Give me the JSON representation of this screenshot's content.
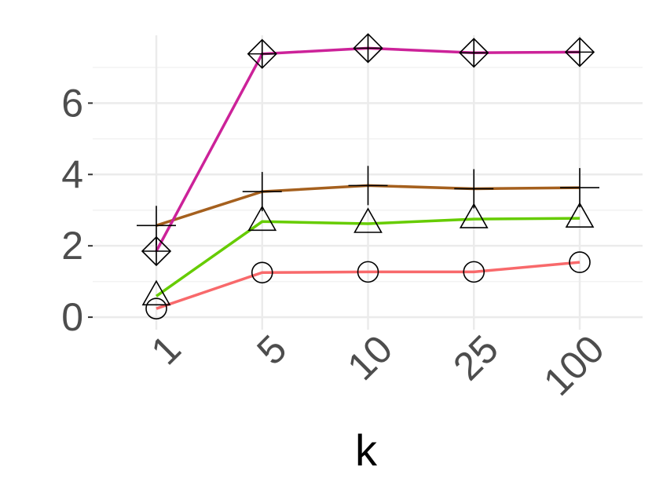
{
  "chart_data": {
    "type": "line",
    "x_label": "k",
    "categories": [
      "1",
      "5",
      "10",
      "25",
      "100"
    ],
    "ylim": [
      -0.35,
      7.9
    ],
    "yticks": [
      0,
      2,
      4,
      6
    ],
    "y_minor_grid": [
      1,
      3,
      5,
      7
    ],
    "grid": true,
    "series": [
      {
        "color": "#f8696b",
        "shape": "circle",
        "values": [
          0.24,
          1.25,
          1.27,
          1.27,
          1.54
        ]
      },
      {
        "color": "#66cc00",
        "shape": "triangle",
        "values": [
          0.59,
          2.68,
          2.62,
          2.75,
          2.77
        ]
      },
      {
        "color": "#a5601e",
        "shape": "plus",
        "values": [
          2.57,
          3.52,
          3.69,
          3.6,
          3.63
        ]
      },
      {
        "color": "#cc2299",
        "shape": "diamond-plus",
        "values": [
          1.85,
          7.38,
          7.54,
          7.41,
          7.43
        ]
      }
    ]
  }
}
